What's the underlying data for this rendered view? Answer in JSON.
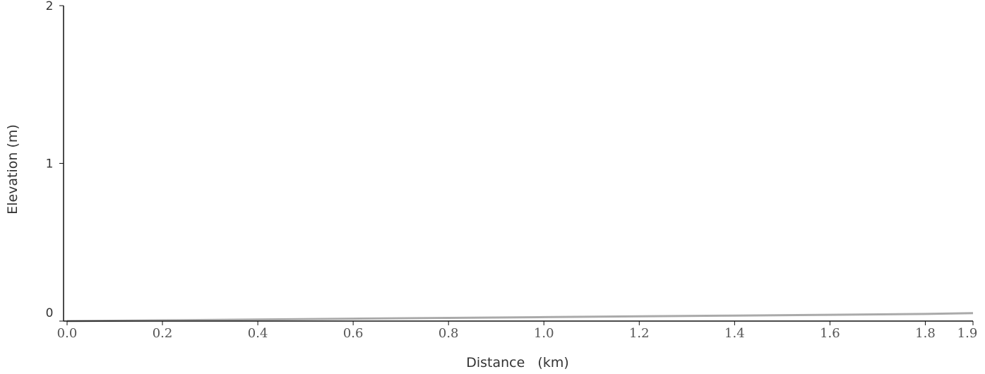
{
  "chart_data": {
    "type": "line",
    "title": "",
    "xlabel": "Distance   (km)",
    "ylabel": "Elevation (m)",
    "xlim": [
      0,
      1.9
    ],
    "ylim": [
      0,
      2
    ],
    "x_ticks": [
      "0.0",
      "0.2",
      "0.4",
      "0.6",
      "0.8",
      "1.0",
      "1.2",
      "1.4",
      "1.6",
      "1.8",
      "1.9"
    ],
    "x_tick_values": [
      0.0,
      0.2,
      0.4,
      0.6,
      0.8,
      1.0,
      1.2,
      1.4,
      1.6,
      1.8,
      1.9
    ],
    "y_ticks": [
      "0",
      "1",
      "2"
    ],
    "y_tick_values": [
      0,
      1,
      2
    ],
    "grid": false,
    "series": [
      {
        "color": "#aaaaaa",
        "x": [
          0.0,
          0.2,
          0.4,
          0.6,
          0.8,
          1.0,
          1.2,
          1.4,
          1.6,
          1.8,
          1.9
        ],
        "y": [
          0.0,
          0.005,
          0.01,
          0.015,
          0.02,
          0.025,
          0.03,
          0.035,
          0.04,
          0.045,
          0.05
        ]
      }
    ]
  }
}
